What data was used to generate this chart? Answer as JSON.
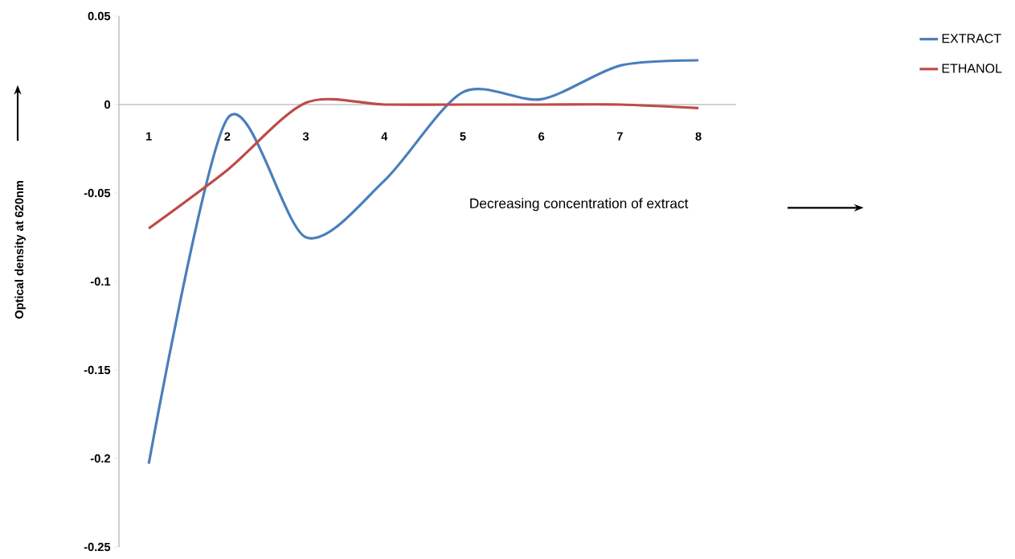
{
  "chart_data": {
    "type": "line",
    "xlabel": "Decreasing concentration of extract",
    "ylabel": "Optical density at 620nm",
    "categories": [
      "1",
      "2",
      "3",
      "4",
      "5",
      "6",
      "7",
      "8"
    ],
    "series": [
      {
        "name": "EXTRACT",
        "color": "#4a7ebb",
        "values": [
          -0.203,
          -0.008,
          -0.075,
          -0.043,
          0.007,
          0.003,
          0.022,
          0.025
        ]
      },
      {
        "name": "ETHANOL",
        "color": "#be4b48",
        "values": [
          -0.07,
          -0.037,
          0.001,
          0,
          0,
          0,
          0,
          -0.002
        ]
      }
    ],
    "ylim": [
      -0.25,
      0.05
    ],
    "yticks": [
      0.05,
      0,
      -0.05,
      -0.1,
      -0.15,
      -0.2,
      -0.25
    ],
    "grid": false,
    "legend": "top right",
    "marker": "none",
    "line_style": "solid"
  }
}
